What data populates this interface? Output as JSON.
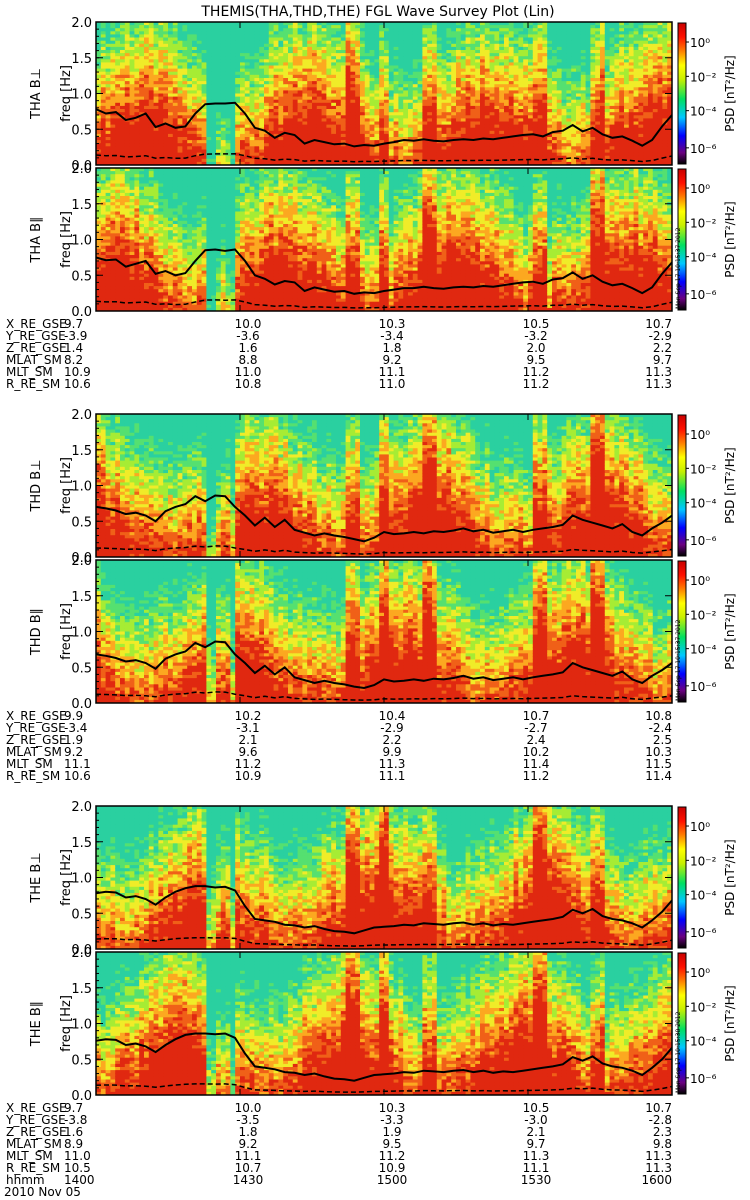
{
  "title": "THEMIS(THA,THD,THE) FGL Wave Survey Plot (Lin)",
  "panel_labels": [
    "THA B⊥",
    "THA B∥",
    "THD B⊥",
    "THD B∥",
    "THE B⊥",
    "THE B∥"
  ],
  "y_axis_label": "freq [Hz]",
  "colorbar_label": "PSD [nT²/Hz]",
  "colorbar_ticks": [
    "10⁰",
    "10⁻²",
    "10⁻⁴",
    "10⁻⁶"
  ],
  "colors": {
    "colorbar": [
      "#ff00ff",
      "#0000ff",
      "#00c8ff",
      "#00e060",
      "#ffff00",
      "#ff8000",
      "#ff0000",
      "#d40000"
    ],
    "spectrogram": [
      "#2ad0a0",
      "#55e070",
      "#a6ec34",
      "#f0ec28",
      "#fca820",
      "#f06018",
      "#e02810"
    ],
    "curve": "#000000"
  },
  "stamps": [
    "Mon Sep 17 10:15:37 2012",
    "Mon Sep 17 10:15:37 2012",
    "Mon Sep 17 10:15:38 2012"
  ],
  "ephemeris_blocks": [
    {
      "rows": [
        {
          "label": "X_RE_GSE",
          "values": [
            "9.7",
            "10.0",
            "10.3",
            "10.5",
            "10.7"
          ]
        },
        {
          "label": "Y_RE_GSE",
          "values": [
            "-3.9",
            "-3.6",
            "-3.4",
            "-3.2",
            "-2.9"
          ]
        },
        {
          "label": "Z_RE_GSE",
          "values": [
            "1.4",
            "1.6",
            "1.8",
            "2.0",
            "2.2"
          ]
        },
        {
          "label": "MLAT_SM",
          "values": [
            "8.2",
            "8.8",
            "9.2",
            "9.5",
            "9.7"
          ]
        },
        {
          "label": "MLT_SM",
          "values": [
            "10.9",
            "11.0",
            "11.1",
            "11.2",
            "11.3"
          ]
        },
        {
          "label": "R_RE_SM",
          "values": [
            "10.6",
            "10.8",
            "11.0",
            "11.2",
            "11.3"
          ]
        }
      ]
    },
    {
      "rows": [
        {
          "label": "X_RE_GSE",
          "values": [
            "9.9",
            "10.2",
            "10.4",
            "10.7",
            "10.8"
          ]
        },
        {
          "label": "Y_RE_GSE",
          "values": [
            "-3.4",
            "-3.1",
            "-2.9",
            "-2.7",
            "-2.4"
          ]
        },
        {
          "label": "Z_RE_GSE",
          "values": [
            "1.9",
            "2.1",
            "2.2",
            "2.4",
            "2.5"
          ]
        },
        {
          "label": "MLAT_SM",
          "values": [
            "9.2",
            "9.6",
            "9.9",
            "10.2",
            "10.3"
          ]
        },
        {
          "label": "MLT_SM",
          "values": [
            "11.1",
            "11.2",
            "11.3",
            "11.4",
            "11.5"
          ]
        },
        {
          "label": "R_RE_SM",
          "values": [
            "10.6",
            "10.9",
            "11.1",
            "11.2",
            "11.4"
          ]
        }
      ]
    },
    {
      "rows": [
        {
          "label": "X_RE_GSE",
          "values": [
            "9.7",
            "10.0",
            "10.3",
            "10.5",
            "10.7"
          ]
        },
        {
          "label": "Y_RE_GSE",
          "values": [
            "-3.8",
            "-3.5",
            "-3.3",
            "-3.0",
            "-2.8"
          ]
        },
        {
          "label": "Z_RE_GSE",
          "values": [
            "1.6",
            "1.8",
            "1.9",
            "2.1",
            "2.3"
          ]
        },
        {
          "label": "MLAT_SM",
          "values": [
            "8.9",
            "9.2",
            "9.5",
            "9.7",
            "9.8"
          ]
        },
        {
          "label": "MLT_SM",
          "values": [
            "11.0",
            "11.1",
            "11.2",
            "11.3",
            "11.3"
          ]
        },
        {
          "label": "R_RE_SM",
          "values": [
            "10.5",
            "10.7",
            "10.9",
            "11.1",
            "11.3"
          ]
        },
        {
          "label": "hhmm",
          "values": [
            "1400",
            "1430",
            "1500",
            "1530",
            "1600"
          ]
        }
      ]
    }
  ],
  "date_label": "2010 Nov 05",
  "chart_data": {
    "type": "heatmap",
    "title": "THEMIS(THA,THD,THE) FGL Wave Survey Plot (Lin)",
    "xlabel": "",
    "ylabel": "freq [Hz]",
    "x_tick_labels": [
      "1400",
      "1430",
      "1500",
      "1530",
      "1600"
    ],
    "ylim": [
      0.0,
      2.0
    ],
    "y_ticks": [
      0.0,
      0.5,
      1.0,
      1.5,
      2.0
    ],
    "colorbar": {
      "label": "PSD [nT²/Hz]",
      "scale": "log",
      "range": [
        1e-07,
        20
      ],
      "ticks": [
        1,
        0.01,
        0.0001,
        1e-06
      ]
    },
    "grid": false,
    "series": [
      {
        "name": "THA B⊥",
        "line": [
          0.78,
          0.72,
          0.74,
          0.63,
          0.66,
          0.72,
          0.53,
          0.58,
          0.52,
          0.54,
          0.72,
          0.85,
          0.86,
          0.86,
          0.87,
          0.72,
          0.52,
          0.48,
          0.38,
          0.45,
          0.42,
          0.3,
          0.35,
          0.32,
          0.29,
          0.3,
          0.26,
          0.28,
          0.27,
          0.3,
          0.32,
          0.35,
          0.34,
          0.36,
          0.34,
          0.33,
          0.35,
          0.36,
          0.35,
          0.37,
          0.36,
          0.38,
          0.4,
          0.42,
          0.43,
          0.4,
          0.46,
          0.48,
          0.56,
          0.47,
          0.52,
          0.43,
          0.38,
          0.4,
          0.34,
          0.27,
          0.35,
          0.54,
          0.7
        ]
      },
      {
        "name": "THA B∥",
        "line": [
          0.75,
          0.71,
          0.72,
          0.62,
          0.66,
          0.7,
          0.52,
          0.56,
          0.5,
          0.53,
          0.7,
          0.85,
          0.86,
          0.84,
          0.86,
          0.7,
          0.5,
          0.45,
          0.37,
          0.42,
          0.4,
          0.28,
          0.33,
          0.3,
          0.27,
          0.28,
          0.24,
          0.26,
          0.25,
          0.28,
          0.3,
          0.32,
          0.32,
          0.34,
          0.32,
          0.31,
          0.33,
          0.34,
          0.33,
          0.35,
          0.34,
          0.36,
          0.38,
          0.4,
          0.41,
          0.38,
          0.44,
          0.46,
          0.54,
          0.45,
          0.5,
          0.41,
          0.36,
          0.38,
          0.32,
          0.25,
          0.33,
          0.52,
          0.68
        ]
      },
      {
        "name": "THD B⊥",
        "line": [
          0.7,
          0.68,
          0.65,
          0.6,
          0.62,
          0.58,
          0.5,
          0.64,
          0.7,
          0.74,
          0.85,
          0.78,
          0.86,
          0.85,
          0.7,
          0.58,
          0.44,
          0.55,
          0.42,
          0.52,
          0.38,
          0.34,
          0.3,
          0.33,
          0.3,
          0.28,
          0.25,
          0.22,
          0.27,
          0.35,
          0.32,
          0.33,
          0.35,
          0.33,
          0.36,
          0.35,
          0.37,
          0.4,
          0.36,
          0.38,
          0.34,
          0.36,
          0.38,
          0.35,
          0.38,
          0.4,
          0.42,
          0.45,
          0.58,
          0.52,
          0.48,
          0.44,
          0.4,
          0.46,
          0.35,
          0.3,
          0.4,
          0.48,
          0.58
        ]
      },
      {
        "name": "THD B∥",
        "line": [
          0.68,
          0.66,
          0.63,
          0.58,
          0.6,
          0.56,
          0.48,
          0.62,
          0.68,
          0.72,
          0.84,
          0.78,
          0.86,
          0.85,
          0.68,
          0.56,
          0.42,
          0.52,
          0.4,
          0.5,
          0.36,
          0.32,
          0.28,
          0.31,
          0.28,
          0.26,
          0.23,
          0.21,
          0.25,
          0.33,
          0.3,
          0.31,
          0.33,
          0.31,
          0.34,
          0.33,
          0.35,
          0.38,
          0.34,
          0.36,
          0.32,
          0.34,
          0.36,
          0.33,
          0.36,
          0.38,
          0.4,
          0.43,
          0.56,
          0.5,
          0.46,
          0.42,
          0.38,
          0.44,
          0.33,
          0.28,
          0.38,
          0.46,
          0.56
        ]
      },
      {
        "name": "THE B⊥",
        "line": [
          0.78,
          0.8,
          0.79,
          0.72,
          0.74,
          0.7,
          0.62,
          0.72,
          0.8,
          0.85,
          0.88,
          0.88,
          0.86,
          0.87,
          0.82,
          0.6,
          0.42,
          0.4,
          0.38,
          0.34,
          0.33,
          0.3,
          0.32,
          0.28,
          0.25,
          0.24,
          0.22,
          0.26,
          0.3,
          0.31,
          0.32,
          0.34,
          0.33,
          0.36,
          0.35,
          0.34,
          0.36,
          0.37,
          0.34,
          0.36,
          0.33,
          0.35,
          0.34,
          0.36,
          0.38,
          0.4,
          0.42,
          0.45,
          0.55,
          0.5,
          0.56,
          0.46,
          0.42,
          0.4,
          0.36,
          0.3,
          0.4,
          0.52,
          0.68
        ]
      },
      {
        "name": "THE B∥",
        "line": [
          0.76,
          0.78,
          0.77,
          0.7,
          0.72,
          0.68,
          0.6,
          0.7,
          0.78,
          0.84,
          0.86,
          0.86,
          0.85,
          0.86,
          0.8,
          0.58,
          0.4,
          0.38,
          0.36,
          0.32,
          0.31,
          0.28,
          0.3,
          0.26,
          0.23,
          0.22,
          0.2,
          0.24,
          0.28,
          0.29,
          0.3,
          0.32,
          0.31,
          0.34,
          0.33,
          0.32,
          0.34,
          0.35,
          0.32,
          0.34,
          0.31,
          0.33,
          0.32,
          0.34,
          0.36,
          0.38,
          0.4,
          0.43,
          0.53,
          0.48,
          0.54,
          0.44,
          0.4,
          0.38,
          0.34,
          0.28,
          0.38,
          0.5,
          0.66
        ]
      }
    ]
  }
}
